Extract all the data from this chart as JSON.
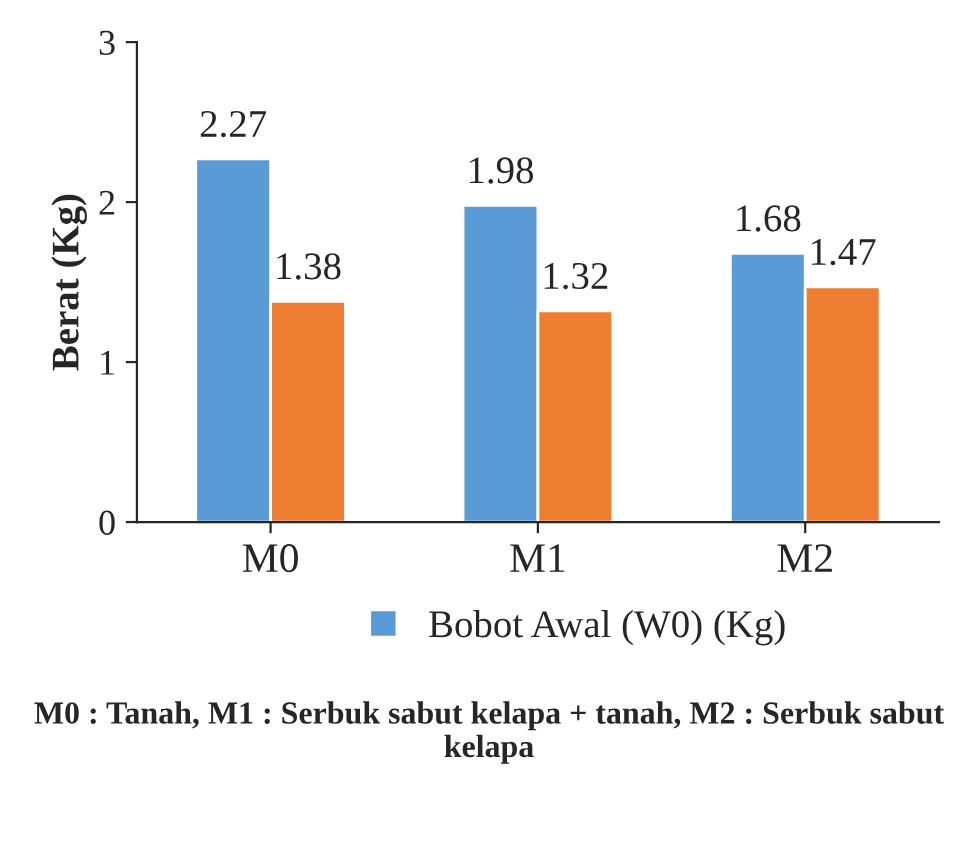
{
  "chart_data": {
    "type": "bar",
    "ylabel": "Berat (Kg)",
    "categories": [
      "M0",
      "M1",
      "M2"
    ],
    "series": [
      {
        "name": "Bobot Awal (W0) (Kg)",
        "color": "#5b9bd5",
        "values": [
          2.27,
          1.98,
          1.68
        ]
      },
      {
        "color": "#ed7d31",
        "values": [
          1.38,
          1.32,
          1.47
        ]
      }
    ],
    "ylim": [
      0,
      3
    ],
    "yticks": [
      0,
      1,
      2,
      3
    ],
    "data_labels": true,
    "grid": false,
    "legend": "bottom",
    "annotations": [
      "M0 : Tanah, M1 : Serbuk sabut kelapa + tanah, M2 : Serbuk sabut kelapa"
    ]
  }
}
